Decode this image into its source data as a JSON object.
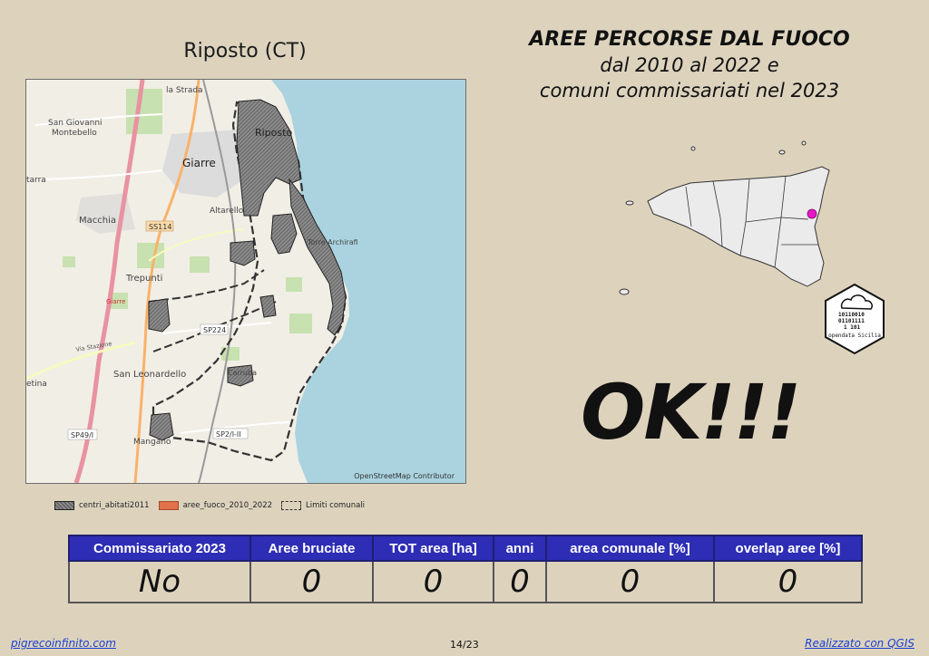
{
  "map": {
    "title": "Riposto (CT)",
    "credit": "OpenStreetMap Contributor",
    "place_labels": {
      "la_strada": "la Strada",
      "san_giovanni": "San Giovanni",
      "montebello": "Montebello",
      "giarre": "Giarre",
      "riposto": "Riposto",
      "macchia": "Macchia",
      "altarello": "Altarello",
      "torre_archirafi": "Torre Archirafi",
      "trepunti": "Trepunti",
      "giarre_red": "Giarre",
      "san_leonardello": "San Leonardello",
      "carruba": "Carruba",
      "mangano": "Mangano",
      "via_stazione": "Via Stazione",
      "tarra": "tarra",
      "etina": "etina"
    },
    "road_labels": {
      "ss114": "SS114",
      "sp224": "SP224",
      "sp49": "SP49/I",
      "sp2": "SP2/I-II"
    }
  },
  "legend": {
    "items": [
      {
        "label": "centri_abitati2011",
        "icon": "hatched-gray-swatch"
      },
      {
        "label": "aree_fuoco_2010_2022",
        "icon": "orange-swatch",
        "color": "#e0714a"
      },
      {
        "label": "Limiti comunali",
        "icon": "dashed-border-swatch"
      }
    ]
  },
  "header": {
    "line1": "AREE PERCORSE DAL FUOCO",
    "line2": "dal 2010 al 2022 e",
    "line3": "comuni commissariati nel 2023"
  },
  "result": {
    "text": "OK!!!"
  },
  "logo": {
    "icon": "opendata-sicilia-logo",
    "text": "opendata Sicilia",
    "bits": [
      "10110010",
      "01101111",
      "1 101"
    ]
  },
  "table": {
    "headers": [
      "Commissariato 2023",
      "Aree bruciate",
      "TOT area [ha]",
      "anni",
      "area comunale [%]",
      "overlap aree [%]"
    ],
    "values": [
      "No",
      "0",
      "0",
      "0",
      "0",
      "0"
    ]
  },
  "footer": {
    "left": "pigrecoinfinito.com",
    "page": "14/23",
    "right": "Realizzato con QGIS"
  },
  "colors": {
    "background": "#ddd3bd",
    "table_header": "#2d2db5",
    "sea": "#aad3df",
    "locator_point": "#e619c8",
    "link": "#1a3fd0"
  }
}
